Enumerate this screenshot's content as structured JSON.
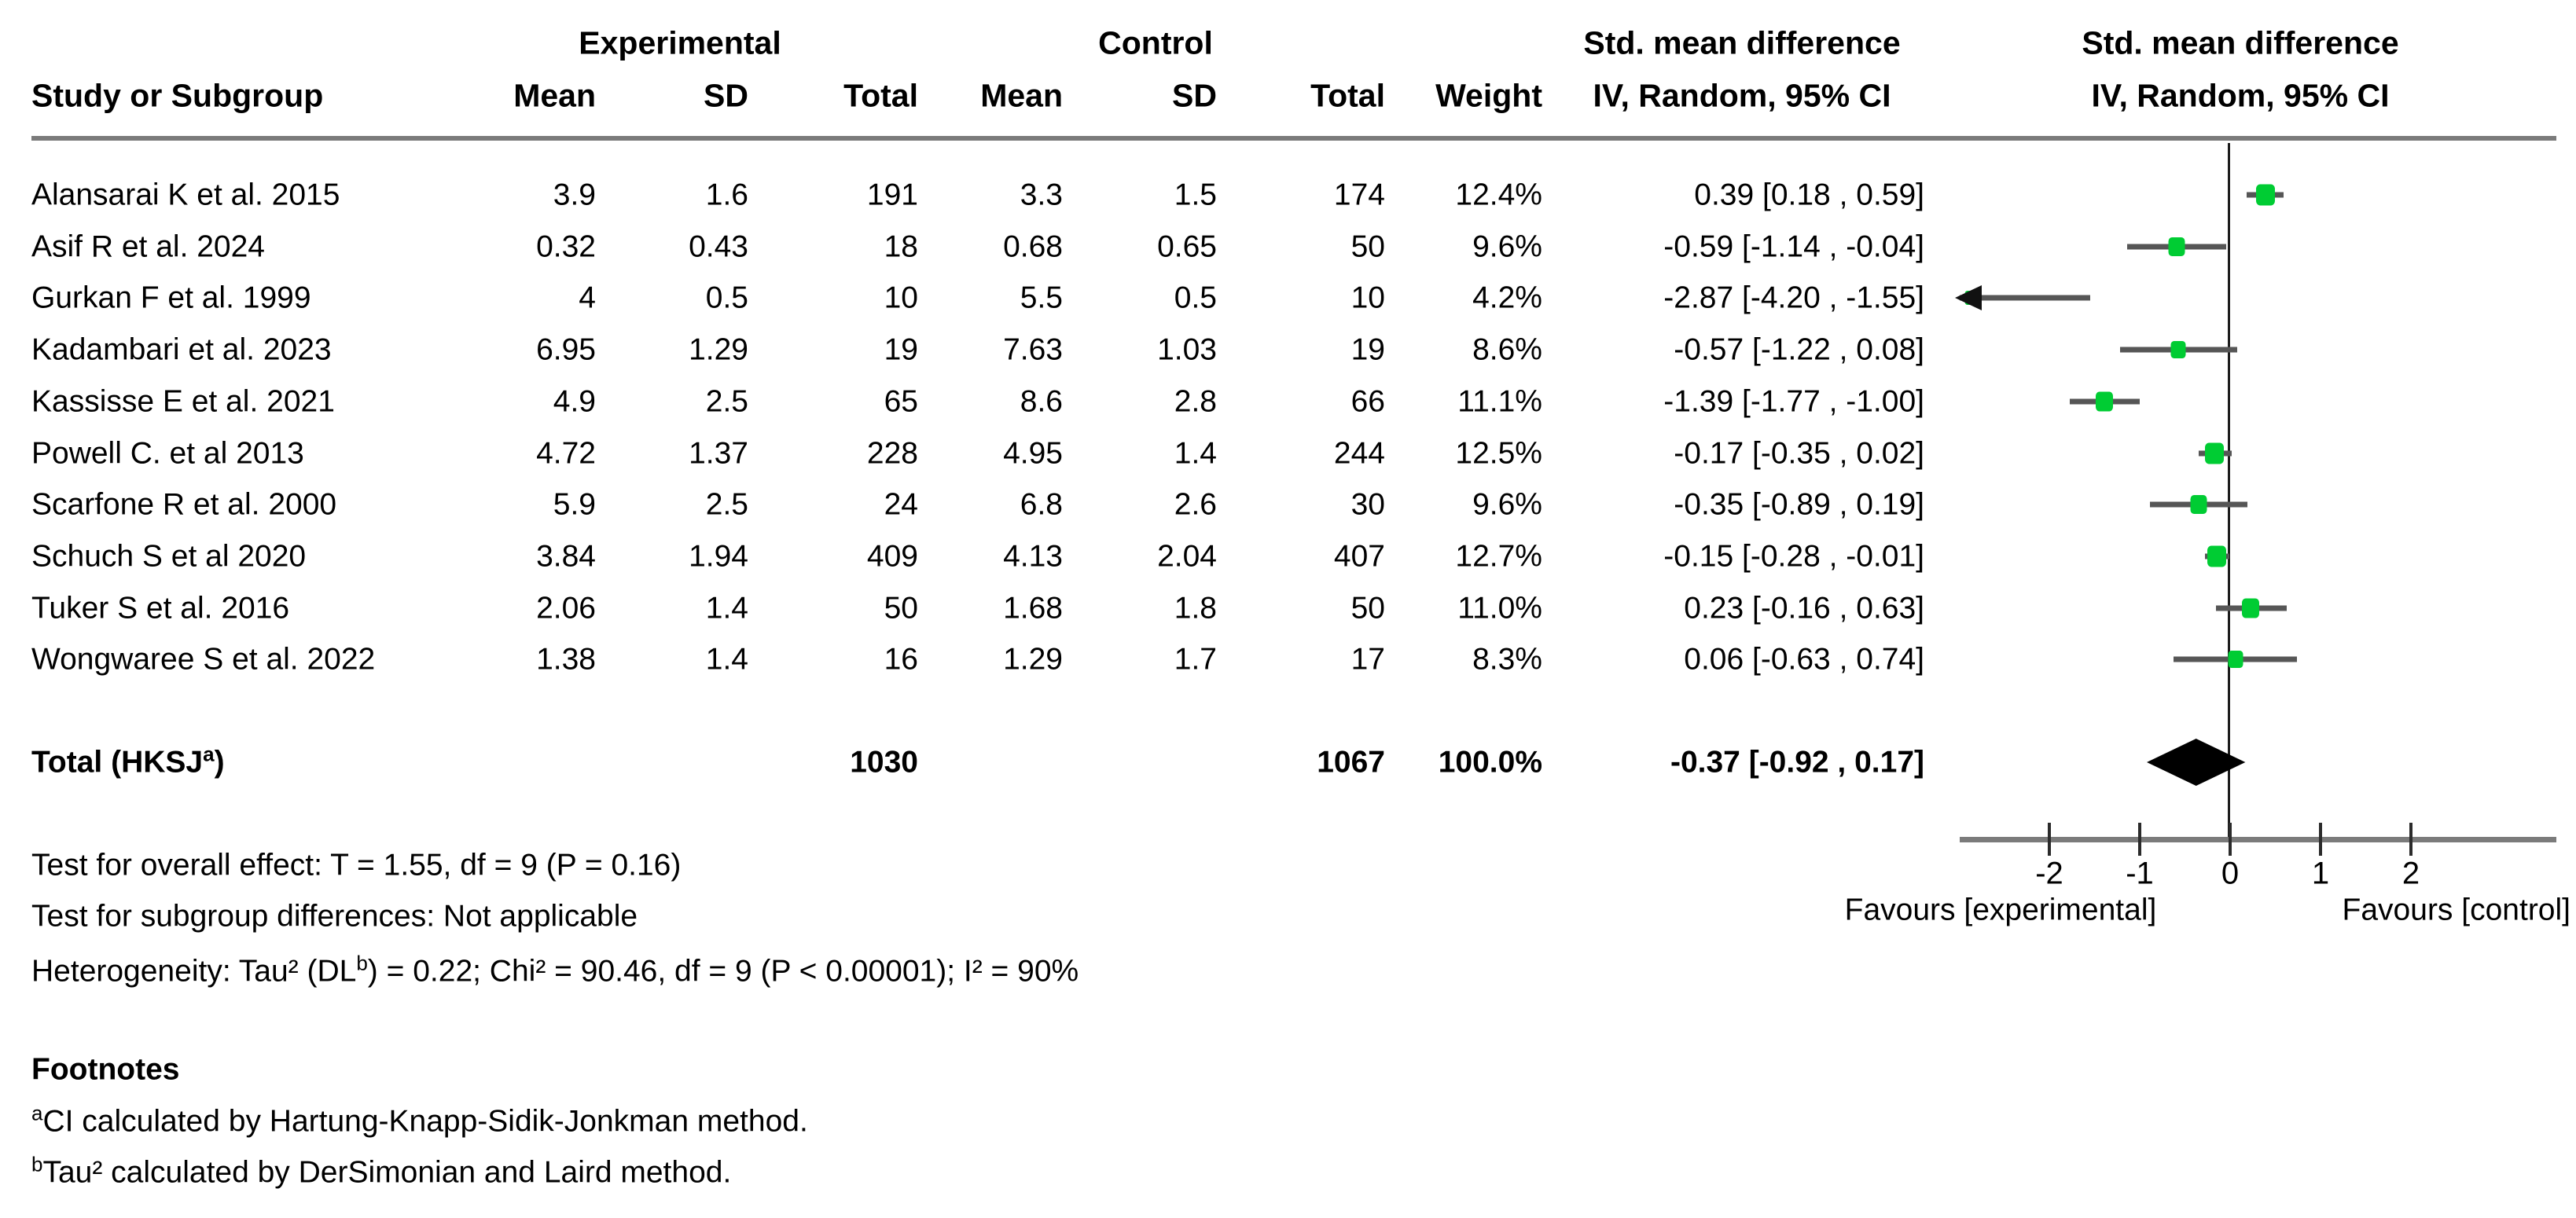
{
  "table": {
    "group_headers": {
      "experimental": "Experimental",
      "control": "Control",
      "smd_text_col": "Std. mean difference",
      "smd_plot_col": "Std. mean difference"
    },
    "col_headers": {
      "study": "Study or Subgroup",
      "mean_exp": "Mean",
      "sd_exp": "SD",
      "total_exp": "Total",
      "mean_ctl": "Mean",
      "sd_ctl": "SD",
      "total_ctl": "Total",
      "weight": "Weight",
      "ci_text_col": "IV, Random, 95% CI",
      "ci_plot_col": "IV, Random, 95% CI"
    }
  },
  "chart_data": {
    "type": "forest",
    "effect_measure": "Std. mean difference",
    "model": "IV, Random, 95% CI",
    "studies": [
      {
        "name": "Alansarai K et al. 2015",
        "mean_e": "3.9",
        "sd_e": "1.6",
        "n_e": "191",
        "mean_c": "3.3",
        "sd_c": "1.5",
        "n_c": "174",
        "weight": "12.4%",
        "ci_text": "0.39 [0.18 , 0.59]",
        "est": 0.39,
        "lo": 0.18,
        "hi": 0.59
      },
      {
        "name": "Asif R et al. 2024",
        "mean_e": "0.32",
        "sd_e": "0.43",
        "n_e": "18",
        "mean_c": "0.68",
        "sd_c": "0.65",
        "n_c": "50",
        "weight": "9.6%",
        "ci_text": "-0.59 [-1.14 , -0.04]",
        "est": -0.59,
        "lo": -1.14,
        "hi": -0.04
      },
      {
        "name": "Gurkan F et al. 1999",
        "mean_e": "4",
        "sd_e": "0.5",
        "n_e": "10",
        "mean_c": "5.5",
        "sd_c": "0.5",
        "n_c": "10",
        "weight": "4.2%",
        "ci_text": "-2.87 [-4.20 , -1.55]",
        "est": -2.87,
        "lo": -4.2,
        "hi": -1.55
      },
      {
        "name": "Kadambari et al. 2023",
        "mean_e": "6.95",
        "sd_e": "1.29",
        "n_e": "19",
        "mean_c": "7.63",
        "sd_c": "1.03",
        "n_c": "19",
        "weight": "8.6%",
        "ci_text": "-0.57 [-1.22 , 0.08]",
        "est": -0.57,
        "lo": -1.22,
        "hi": 0.08
      },
      {
        "name": "Kassisse E et al. 2021",
        "mean_e": "4.9",
        "sd_e": "2.5",
        "n_e": "65",
        "mean_c": "8.6",
        "sd_c": "2.8",
        "n_c": "66",
        "weight": "11.1%",
        "ci_text": "-1.39 [-1.77 , -1.00]",
        "est": -1.39,
        "lo": -1.77,
        "hi": -1.0
      },
      {
        "name": "Powell C. et al 2013",
        "mean_e": "4.72",
        "sd_e": "1.37",
        "n_e": "228",
        "mean_c": "4.95",
        "sd_c": "1.4",
        "n_c": "244",
        "weight": "12.5%",
        "ci_text": "-0.17 [-0.35 , 0.02]",
        "est": -0.17,
        "lo": -0.35,
        "hi": 0.02
      },
      {
        "name": "Scarfone R et al. 2000",
        "mean_e": "5.9",
        "sd_e": "2.5",
        "n_e": "24",
        "mean_c": "6.8",
        "sd_c": "2.6",
        "n_c": "30",
        "weight": "9.6%",
        "ci_text": "-0.35 [-0.89 , 0.19]",
        "est": -0.35,
        "lo": -0.89,
        "hi": 0.19
      },
      {
        "name": "Schuch S et al 2020",
        "mean_e": "3.84",
        "sd_e": "1.94",
        "n_e": "409",
        "mean_c": "4.13",
        "sd_c": "2.04",
        "n_c": "407",
        "weight": "12.7%",
        "ci_text": "-0.15 [-0.28 , -0.01]",
        "est": -0.15,
        "lo": -0.28,
        "hi": -0.01
      },
      {
        "name": "Tuker S et al. 2016",
        "mean_e": "2.06",
        "sd_e": "1.4",
        "n_e": "50",
        "mean_c": "1.68",
        "sd_c": "1.8",
        "n_c": "50",
        "weight": "11.0%",
        "ci_text": "0.23 [-0.16 , 0.63]",
        "est": 0.23,
        "lo": -0.16,
        "hi": 0.63
      },
      {
        "name": "Wongwaree S et al. 2022",
        "mean_e": "1.38",
        "sd_e": "1.4",
        "n_e": "16",
        "mean_c": "1.29",
        "sd_c": "1.7",
        "n_c": "17",
        "weight": "8.3%",
        "ci_text": "0.06 [-0.63 , 0.74]",
        "est": 0.06,
        "lo": -0.63,
        "hi": 0.74
      }
    ],
    "total": {
      "label_pre": "Total (HKSJ",
      "label_sup": "a",
      "label_post": ")",
      "n_e": "1030",
      "n_c": "1067",
      "weight": "100.0%",
      "ci_text": "-0.37 [-0.92 , 0.17]",
      "est": -0.37,
      "lo": -0.92,
      "hi": 0.17
    },
    "axis": {
      "ticks": [
        "-2",
        "-1",
        "0",
        "1",
        "2"
      ],
      "tick_values": [
        -2,
        -1,
        0,
        1,
        2
      ],
      "xmin": -2.99,
      "xmax": 3.6
    },
    "favours_left": "Favours [experimental]",
    "favours_right": "Favours [control]",
    "colors": {
      "marker": "#00cc33",
      "ci_line": "#565656",
      "diamond": "#000000",
      "axis": "#7b7b7b"
    }
  },
  "stats": {
    "overall_effect": "Test for overall effect: T = 1.55, df = 9 (P = 0.16)",
    "subgroup_diff": "Test for subgroup differences: Not applicable",
    "heterogeneity_pre": "Heterogeneity: Tau² (DL",
    "heterogeneity_sup": "b",
    "heterogeneity_post": ") = 0.22; Chi² = 90.46, df = 9 (P < 0.00001); I² = 90%"
  },
  "footnotes": {
    "title": "Footnotes",
    "a_sup": "a",
    "a_text": "CI calculated by Hartung-Knapp-Sidik-Jonkman method.",
    "b_sup": "b",
    "b_text": "Tau² calculated by DerSimonian and Laird method."
  }
}
